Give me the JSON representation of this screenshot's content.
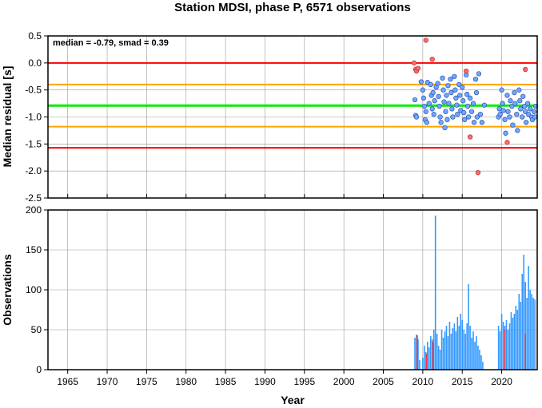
{
  "chart_data": [
    {
      "type": "scatter",
      "title": "Station MDSI, phase P, 6571 observations",
      "ylabel": "Median residual [s]",
      "xlabel": "Year",
      "xlim": [
        1962.5,
        2024.5
      ],
      "ylim": [
        -2.5,
        0.5
      ],
      "yticks": [
        "0.5",
        "0.0",
        "-0.5",
        "-1.0",
        "-1.5",
        "-2.0",
        "-2.5"
      ],
      "grid": true,
      "annotation": "median = -0.79, smad = 0.39",
      "reference_lines": [
        {
          "y": -0.79,
          "color": "#00ee00",
          "role": "median"
        },
        {
          "y": -0.4,
          "color": "#ffa500",
          "role": "median + 1 smad"
        },
        {
          "y": -1.18,
          "color": "#ffa500",
          "role": "median - 1 smad"
        },
        {
          "y": 0.0,
          "color": "#ff0000",
          "role": "zero"
        },
        {
          "y": -1.57,
          "color": "#ff0000",
          "role": "median - 2 smad"
        }
      ],
      "series": [
        {
          "marker": "blue-circle",
          "color": "#6fa8ff",
          "points": [
            [
              2009.0,
              -0.68
            ],
            [
              2009.1,
              -0.97
            ],
            [
              2009.2,
              -1.0
            ],
            [
              2009.8,
              -0.35
            ],
            [
              2010.0,
              -0.5
            ],
            [
              2010.1,
              -0.65
            ],
            [
              2010.2,
              -0.8
            ],
            [
              2010.3,
              -1.05
            ],
            [
              2010.4,
              -0.9
            ],
            [
              2010.5,
              -1.1
            ],
            [
              2010.6,
              -0.36
            ],
            [
              2010.8,
              -0.75
            ],
            [
              2011.0,
              -0.4
            ],
            [
              2011.1,
              -0.6
            ],
            [
              2011.2,
              -0.85
            ],
            [
              2011.3,
              -0.55
            ],
            [
              2011.4,
              -0.95
            ],
            [
              2011.5,
              -0.7
            ],
            [
              2011.7,
              -0.45
            ],
            [
              2011.9,
              -0.38
            ],
            [
              2012.0,
              -0.62
            ],
            [
              2012.1,
              -0.8
            ],
            [
              2012.2,
              -1.0
            ],
            [
              2012.3,
              -1.1
            ],
            [
              2012.5,
              -0.28
            ],
            [
              2012.6,
              -0.5
            ],
            [
              2012.7,
              -0.72
            ],
            [
              2012.8,
              -1.2
            ],
            [
              2012.9,
              -0.9
            ],
            [
              2013.0,
              -0.6
            ],
            [
              2013.1,
              -1.05
            ],
            [
              2013.2,
              -0.42
            ],
            [
              2013.3,
              -0.75
            ],
            [
              2013.5,
              -0.3
            ],
            [
              2013.6,
              -0.55
            ],
            [
              2013.7,
              -0.85
            ],
            [
              2013.8,
              -1.0
            ],
            [
              2014.0,
              -0.25
            ],
            [
              2014.1,
              -0.5
            ],
            [
              2014.2,
              -0.65
            ],
            [
              2014.3,
              -0.78
            ],
            [
              2014.4,
              -0.95
            ],
            [
              2014.6,
              -0.4
            ],
            [
              2014.7,
              -0.6
            ],
            [
              2014.8,
              -0.88
            ],
            [
              2015.0,
              -0.45
            ],
            [
              2015.1,
              -0.7
            ],
            [
              2015.2,
              -0.92
            ],
            [
              2015.3,
              -1.05
            ],
            [
              2015.5,
              -0.22
            ],
            [
              2015.6,
              -0.58
            ],
            [
              2015.7,
              -0.8
            ],
            [
              2015.8,
              -1.0
            ],
            [
              2016.0,
              -0.65
            ],
            [
              2016.2,
              -0.9
            ],
            [
              2016.4,
              -0.75
            ],
            [
              2016.5,
              -1.1
            ],
            [
              2016.7,
              -0.3
            ],
            [
              2016.8,
              -0.55
            ],
            [
              2016.9,
              -1.0
            ],
            [
              2017.1,
              -0.2
            ],
            [
              2017.3,
              -0.95
            ],
            [
              2017.5,
              -1.1
            ],
            [
              2017.8,
              -0.78
            ],
            [
              2019.6,
              -1.0
            ],
            [
              2019.7,
              -0.85
            ],
            [
              2019.8,
              -0.95
            ],
            [
              2020.0,
              -0.5
            ],
            [
              2020.1,
              -0.75
            ],
            [
              2020.2,
              -0.88
            ],
            [
              2020.4,
              -1.05
            ],
            [
              2020.5,
              -1.3
            ],
            [
              2020.7,
              -0.6
            ],
            [
              2020.8,
              -0.9
            ],
            [
              2021.0,
              -1.0
            ],
            [
              2021.1,
              -0.7
            ],
            [
              2021.3,
              -0.8
            ],
            [
              2021.4,
              -1.15
            ],
            [
              2021.6,
              -0.55
            ],
            [
              2021.7,
              -0.75
            ],
            [
              2021.9,
              -0.95
            ],
            [
              2022.0,
              -1.25
            ],
            [
              2022.2,
              -0.5
            ],
            [
              2022.3,
              -0.7
            ],
            [
              2022.4,
              -0.85
            ],
            [
              2022.6,
              -1.0
            ],
            [
              2022.7,
              -0.62
            ],
            [
              2022.9,
              -0.8
            ],
            [
              2023.0,
              -0.9
            ],
            [
              2023.1,
              -1.1
            ],
            [
              2023.3,
              -0.75
            ],
            [
              2023.4,
              -0.95
            ],
            [
              2023.6,
              -0.85
            ],
            [
              2023.8,
              -1.0
            ],
            [
              2023.9,
              -1.05
            ],
            [
              2024.1,
              -0.9
            ],
            [
              2024.2,
              -1.0
            ],
            [
              2024.3,
              -0.8
            ]
          ]
        },
        {
          "marker": "red-circle",
          "color": "#ff6a6a",
          "points": [
            [
              2008.9,
              0.0
            ],
            [
              2009.1,
              -0.12
            ],
            [
              2009.2,
              -0.15
            ],
            [
              2009.4,
              -0.1
            ],
            [
              2010.4,
              0.42
            ],
            [
              2011.2,
              0.07
            ],
            [
              2015.5,
              -0.15
            ],
            [
              2016.0,
              -1.37
            ],
            [
              2017.0,
              -2.03
            ],
            [
              2020.7,
              -1.47
            ],
            [
              2023.0,
              -0.12
            ]
          ]
        }
      ]
    },
    {
      "type": "bar",
      "ylabel": "Observations",
      "xlabel": "Year",
      "xlim": [
        1962.5,
        2024.5
      ],
      "ylim": [
        0,
        200
      ],
      "yticks": [
        "200",
        "150",
        "100",
        "50",
        "0"
      ],
      "xticks": [
        "1965",
        "1970",
        "1975",
        "1980",
        "1985",
        "1990",
        "1995",
        "2000",
        "2005",
        "2010",
        "2015",
        "2020"
      ],
      "grid": true,
      "series": [
        {
          "color": "#3399ff",
          "bars": [
            [
              2009.0,
              40
            ],
            [
              2009.2,
              44
            ],
            [
              2009.4,
              38
            ],
            [
              2009.6,
              12
            ],
            [
              2010.0,
              15
            ],
            [
              2010.2,
              30
            ],
            [
              2010.4,
              22
            ],
            [
              2010.6,
              35
            ],
            [
              2010.8,
              28
            ],
            [
              2011.0,
              42
            ],
            [
              2011.2,
              38
            ],
            [
              2011.4,
              50
            ],
            [
              2011.6,
              193
            ],
            [
              2011.8,
              45
            ],
            [
              2012.0,
              30
            ],
            [
              2012.2,
              25
            ],
            [
              2012.4,
              50
            ],
            [
              2012.6,
              40
            ],
            [
              2012.8,
              48
            ],
            [
              2013.0,
              55
            ],
            [
              2013.2,
              42
            ],
            [
              2013.4,
              60
            ],
            [
              2013.6,
              45
            ],
            [
              2013.8,
              52
            ],
            [
              2014.0,
              58
            ],
            [
              2014.2,
              48
            ],
            [
              2014.4,
              66
            ],
            [
              2014.6,
              55
            ],
            [
              2014.8,
              70
            ],
            [
              2015.0,
              62
            ],
            [
              2015.2,
              50
            ],
            [
              2015.4,
              45
            ],
            [
              2015.6,
              58
            ],
            [
              2015.8,
              107
            ],
            [
              2016.0,
              55
            ],
            [
              2016.2,
              40
            ],
            [
              2016.4,
              48
            ],
            [
              2016.6,
              35
            ],
            [
              2016.8,
              42
            ],
            [
              2017.0,
              30
            ],
            [
              2017.2,
              25
            ],
            [
              2017.4,
              18
            ],
            [
              2017.6,
              10
            ],
            [
              2019.6,
              55
            ],
            [
              2019.8,
              48
            ],
            [
              2020.0,
              70
            ],
            [
              2020.2,
              60
            ],
            [
              2020.4,
              55
            ],
            [
              2020.6,
              62
            ],
            [
              2020.8,
              50
            ],
            [
              2021.0,
              58
            ],
            [
              2021.2,
              72
            ],
            [
              2021.4,
              65
            ],
            [
              2021.6,
              70
            ],
            [
              2021.8,
              80
            ],
            [
              2022.0,
              75
            ],
            [
              2022.2,
              95
            ],
            [
              2022.4,
              85
            ],
            [
              2022.6,
              120
            ],
            [
              2022.8,
              144
            ],
            [
              2023.0,
              110
            ],
            [
              2023.2,
              90
            ],
            [
              2023.4,
              130
            ],
            [
              2023.6,
              100
            ],
            [
              2023.8,
              95
            ],
            [
              2024.0,
              90
            ],
            [
              2024.2,
              88
            ]
          ]
        },
        {
          "color": "#ff3333",
          "bars": [
            [
              2009.3,
              43
            ],
            [
              2010.5,
              20
            ],
            [
              2011.3,
              35
            ],
            [
              2020.4,
              50
            ],
            [
              2023.0,
              45
            ]
          ]
        }
      ]
    }
  ]
}
